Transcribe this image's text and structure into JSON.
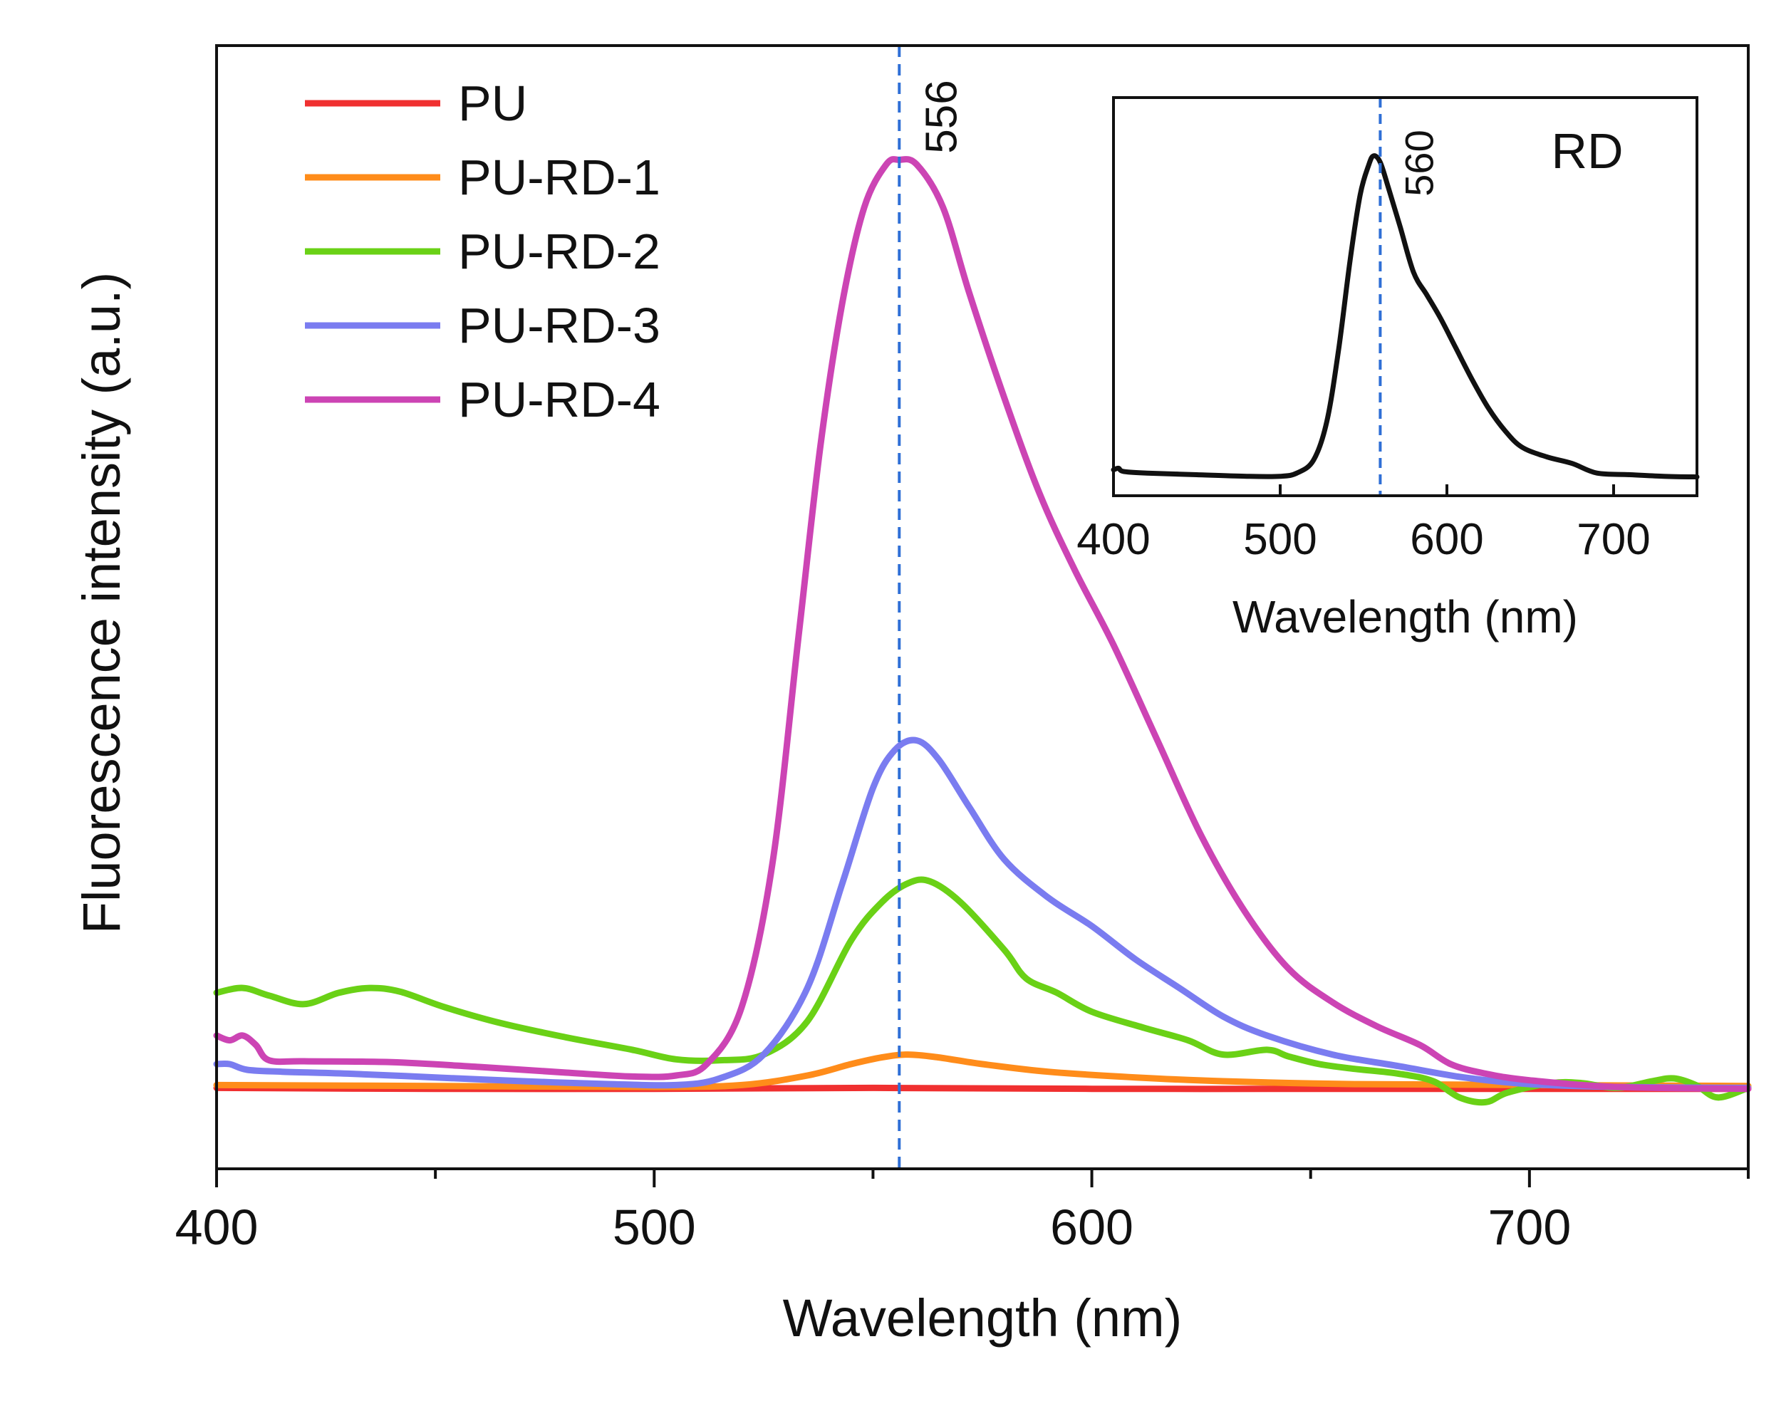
{
  "chart_data": [
    {
      "type": "line",
      "xlabel": "Wavelength (nm)",
      "ylabel": "Fluorescence intensity (a.u.)",
      "xlim": [
        400,
        750
      ],
      "ylim": [
        -0.08,
        1.1
      ],
      "xticks": [
        400,
        500,
        600,
        700
      ],
      "xticks_minor": [
        450,
        550,
        650,
        750
      ],
      "yticks_shown": false,
      "grid": false,
      "legend_position": "top-left",
      "reference_line": {
        "x": 556,
        "label": "556",
        "style": "dashed",
        "color": "#2f6fd6"
      },
      "series": [
        {
          "name": "PU",
          "color": "#f03030",
          "points": [
            [
              400,
              0.005
            ],
            [
              450,
              0.004
            ],
            [
              500,
              0.004
            ],
            [
              550,
              0.005
            ],
            [
              600,
              0.004
            ],
            [
              650,
              0.004
            ],
            [
              700,
              0.004
            ],
            [
              750,
              0.004
            ]
          ]
        },
        {
          "name": "PU-RD-1",
          "color": "#ff8c1a",
          "points": [
            [
              400,
              0.008
            ],
            [
              450,
              0.007
            ],
            [
              500,
              0.006
            ],
            [
              520,
              0.008
            ],
            [
              535,
              0.018
            ],
            [
              545,
              0.03
            ],
            [
              552,
              0.037
            ],
            [
              558,
              0.04
            ],
            [
              565,
              0.037
            ],
            [
              575,
              0.03
            ],
            [
              590,
              0.022
            ],
            [
              610,
              0.016
            ],
            [
              630,
              0.012
            ],
            [
              660,
              0.009
            ],
            [
              700,
              0.008
            ],
            [
              750,
              0.007
            ]
          ]
        },
        {
          "name": "PU-RD-2",
          "color": "#6ad116",
          "points": [
            [
              400,
              0.105
            ],
            [
              406,
              0.11
            ],
            [
              412,
              0.102
            ],
            [
              420,
              0.093
            ],
            [
              428,
              0.105
            ],
            [
              435,
              0.11
            ],
            [
              442,
              0.106
            ],
            [
              452,
              0.09
            ],
            [
              465,
              0.073
            ],
            [
              480,
              0.058
            ],
            [
              495,
              0.045
            ],
            [
              505,
              0.035
            ],
            [
              515,
              0.034
            ],
            [
              525,
              0.04
            ],
            [
              535,
              0.075
            ],
            [
              545,
              0.16
            ],
            [
              552,
              0.2
            ],
            [
              558,
              0.22
            ],
            [
              563,
              0.222
            ],
            [
              570,
              0.2
            ],
            [
              580,
              0.15
            ],
            [
              585,
              0.12
            ],
            [
              592,
              0.105
            ],
            [
              600,
              0.085
            ],
            [
              612,
              0.068
            ],
            [
              622,
              0.055
            ],
            [
              630,
              0.04
            ],
            [
              640,
              0.045
            ],
            [
              645,
              0.038
            ],
            [
              652,
              0.03
            ],
            [
              660,
              0.025
            ],
            [
              670,
              0.02
            ],
            [
              678,
              0.012
            ],
            [
              684,
              -0.005
            ],
            [
              690,
              -0.01
            ],
            [
              695,
              0.0
            ],
            [
              705,
              0.01
            ],
            [
              712,
              0.01
            ],
            [
              720,
              0.005
            ],
            [
              728,
              0.012
            ],
            [
              733,
              0.015
            ],
            [
              738,
              0.008
            ],
            [
              743,
              -0.005
            ],
            [
              750,
              0.005
            ]
          ]
        },
        {
          "name": "PU-RD-3",
          "color": "#7a7cf0",
          "points": [
            [
              400,
              0.03
            ],
            [
              403,
              0.03
            ],
            [
              407,
              0.024
            ],
            [
              415,
              0.022
            ],
            [
              430,
              0.02
            ],
            [
              450,
              0.016
            ],
            [
              470,
              0.012
            ],
            [
              490,
              0.009
            ],
            [
              505,
              0.008
            ],
            [
              515,
              0.015
            ],
            [
              525,
              0.04
            ],
            [
              535,
              0.11
            ],
            [
              543,
              0.22
            ],
            [
              550,
              0.32
            ],
            [
              555,
              0.36
            ],
            [
              560,
              0.37
            ],
            [
              565,
              0.35
            ],
            [
              572,
              0.3
            ],
            [
              580,
              0.245
            ],
            [
              590,
              0.205
            ],
            [
              600,
              0.175
            ],
            [
              610,
              0.14
            ],
            [
              620,
              0.11
            ],
            [
              630,
              0.08
            ],
            [
              640,
              0.06
            ],
            [
              655,
              0.04
            ],
            [
              670,
              0.028
            ],
            [
              685,
              0.016
            ],
            [
              700,
              0.009
            ],
            [
              720,
              0.006
            ],
            [
              750,
              0.005
            ]
          ]
        },
        {
          "name": "PU-RD-4",
          "color": "#cc44b4",
          "points": [
            [
              400,
              0.06
            ],
            [
              403,
              0.055
            ],
            [
              406,
              0.06
            ],
            [
              409,
              0.05
            ],
            [
              412,
              0.034
            ],
            [
              420,
              0.033
            ],
            [
              440,
              0.032
            ],
            [
              460,
              0.027
            ],
            [
              480,
              0.021
            ],
            [
              495,
              0.017
            ],
            [
              505,
              0.018
            ],
            [
              512,
              0.03
            ],
            [
              520,
              0.09
            ],
            [
              527,
              0.24
            ],
            [
              533,
              0.48
            ],
            [
              538,
              0.68
            ],
            [
              543,
              0.83
            ],
            [
              548,
              0.93
            ],
            [
              553,
              0.975
            ],
            [
              556,
              0.98
            ],
            [
              560,
              0.975
            ],
            [
              566,
              0.93
            ],
            [
              572,
              0.84
            ],
            [
              580,
              0.73
            ],
            [
              588,
              0.63
            ],
            [
              596,
              0.55
            ],
            [
              605,
              0.47
            ],
            [
              615,
              0.37
            ],
            [
              625,
              0.27
            ],
            [
              635,
              0.19
            ],
            [
              645,
              0.13
            ],
            [
              655,
              0.095
            ],
            [
              665,
              0.07
            ],
            [
              675,
              0.05
            ],
            [
              682,
              0.03
            ],
            [
              690,
              0.02
            ],
            [
              700,
              0.013
            ],
            [
              720,
              0.006
            ],
            [
              750,
              0.004
            ]
          ]
        }
      ]
    },
    {
      "type": "line",
      "title": "RD",
      "xlabel": "Wavelength (nm)",
      "xlim": [
        400,
        750
      ],
      "ylim": [
        -0.05,
        1.18
      ],
      "xticks": [
        400,
        500,
        600,
        700
      ],
      "yticks_shown": false,
      "grid": false,
      "reference_line": {
        "x": 560,
        "label": "560",
        "style": "dashed",
        "color": "#2f6fd6"
      },
      "series": [
        {
          "color": "#111111",
          "points": [
            [
              400,
              0.03
            ],
            [
              403,
              0.035
            ],
            [
              406,
              0.025
            ],
            [
              420,
              0.02
            ],
            [
              450,
              0.015
            ],
            [
              480,
              0.01
            ],
            [
              500,
              0.01
            ],
            [
              510,
              0.02
            ],
            [
              520,
              0.06
            ],
            [
              528,
              0.18
            ],
            [
              535,
              0.4
            ],
            [
              542,
              0.68
            ],
            [
              548,
              0.88
            ],
            [
              553,
              0.97
            ],
            [
              556,
              1.0
            ],
            [
              560,
              0.98
            ],
            [
              565,
              0.9
            ],
            [
              572,
              0.78
            ],
            [
              580,
              0.64
            ],
            [
              588,
              0.57
            ],
            [
              596,
              0.5
            ],
            [
              605,
              0.41
            ],
            [
              615,
              0.31
            ],
            [
              625,
              0.22
            ],
            [
              635,
              0.15
            ],
            [
              645,
              0.1
            ],
            [
              660,
              0.07
            ],
            [
              675,
              0.05
            ],
            [
              690,
              0.02
            ],
            [
              710,
              0.015
            ],
            [
              730,
              0.01
            ],
            [
              750,
              0.008
            ]
          ]
        }
      ]
    }
  ],
  "legend": {
    "entries": [
      "PU",
      "PU-RD-1",
      "PU-RD-2",
      "PU-RD-3",
      "PU-RD-4"
    ]
  }
}
